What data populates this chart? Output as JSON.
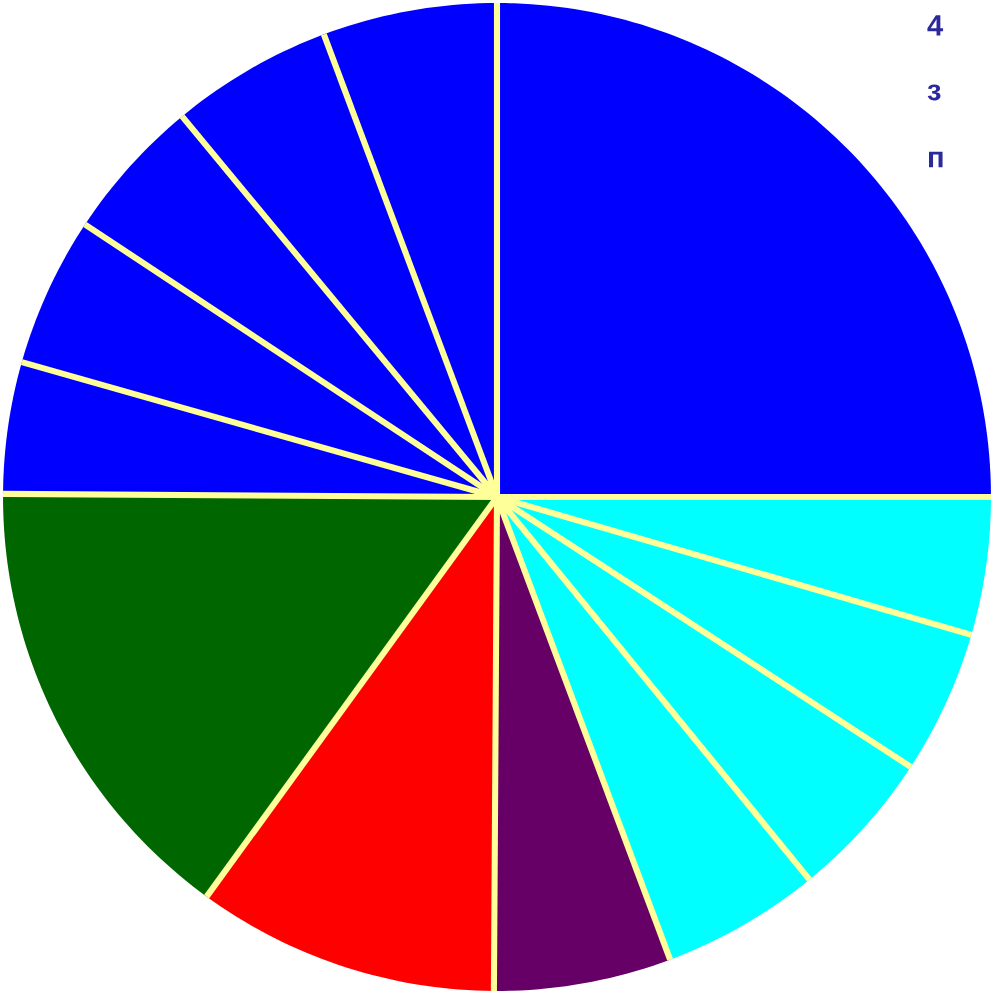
{
  "chart_data": {
    "type": "pie",
    "categories": [
      null,
      null,
      null,
      null,
      null,
      null,
      null,
      null,
      null,
      null,
      null,
      null,
      null
    ],
    "values": [
      25,
      4.5,
      4.7,
      4.9,
      5.2,
      5.8,
      9.9,
      15.1,
      4.3,
      4.9,
      4.7,
      5.3,
      5.7
    ],
    "colors": [
      "#0000ff",
      "#00ffff",
      "#00ffff",
      "#00ffff",
      "#00ffff",
      "#660066",
      "#ff0000",
      "#006600",
      "#0000ff",
      "#0000ff",
      "#0000ff",
      "#0000ff",
      "#0000ff"
    ],
    "annotations": [
      "4",
      "з",
      "п"
    ]
  }
}
